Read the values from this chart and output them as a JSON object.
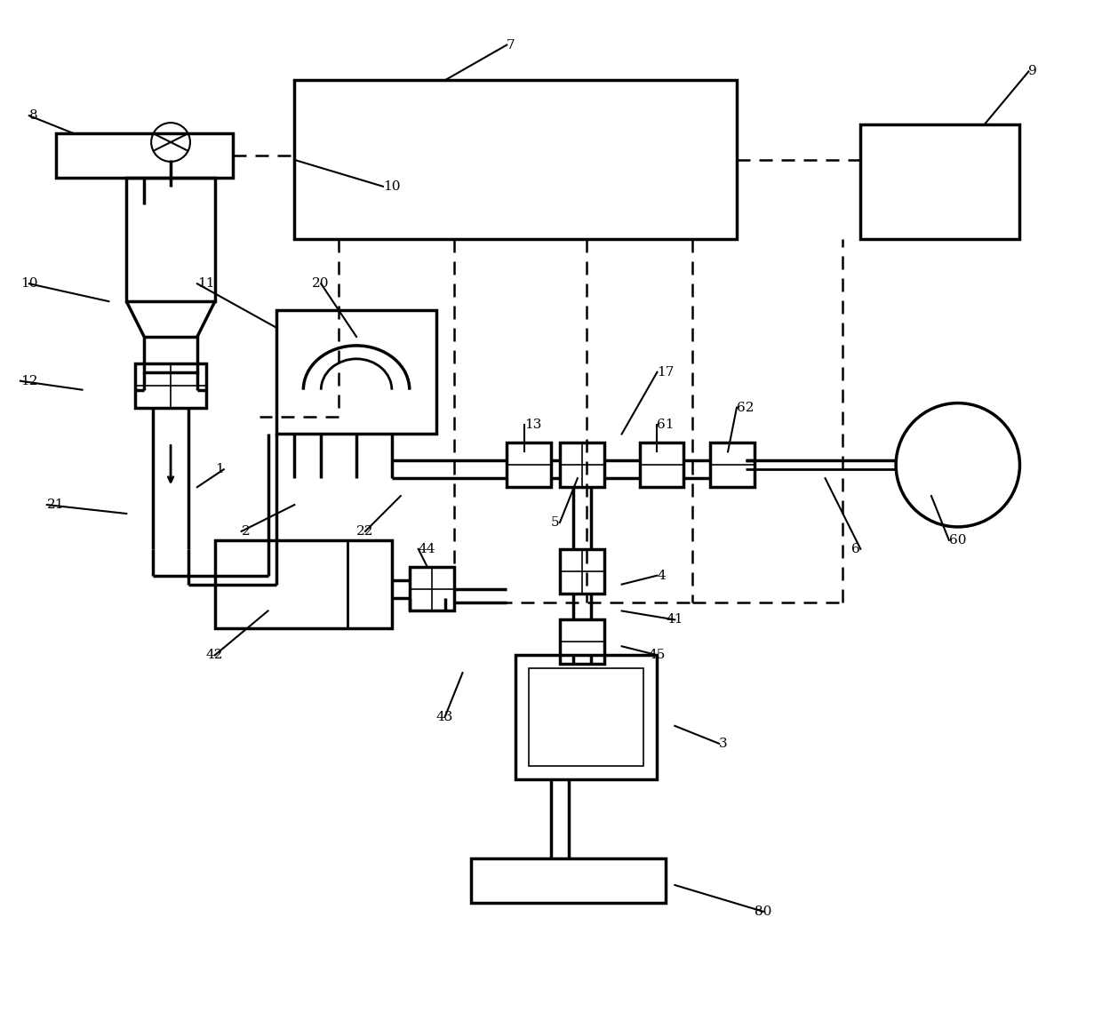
{
  "bg_color": "#ffffff",
  "line_color": "#000000",
  "lw_thick": 2.5,
  "lw_med": 2.0,
  "lw_thin": 1.5,
  "lw_dash": 1.8,
  "fig_w": 12.4,
  "fig_h": 11.58,
  "xlim": [
    0,
    124
  ],
  "ylim": [
    0,
    115.8
  ],
  "labels": [
    [
      "7",
      57,
      111,
      11
    ],
    [
      "8",
      3,
      103,
      11
    ],
    [
      "9",
      116,
      108,
      11
    ],
    [
      "10",
      2,
      84,
      11
    ],
    [
      "11",
      22,
      84,
      11
    ],
    [
      "12",
      2,
      73,
      11
    ],
    [
      "1",
      24,
      63,
      11
    ],
    [
      "2",
      27,
      56,
      11
    ],
    [
      "20",
      35,
      84,
      11
    ],
    [
      "21",
      5,
      59,
      11
    ],
    [
      "22",
      40,
      56,
      11
    ],
    [
      "13",
      59,
      68,
      11
    ],
    [
      "17",
      74,
      74,
      11
    ],
    [
      "5",
      62,
      57,
      11
    ],
    [
      "61",
      74,
      68,
      11
    ],
    [
      "62",
      83,
      70,
      11
    ],
    [
      "60",
      107,
      55,
      11
    ],
    [
      "6",
      96,
      54,
      11
    ],
    [
      "4",
      74,
      51,
      11
    ],
    [
      "41",
      75,
      46,
      11
    ],
    [
      "45",
      73,
      42,
      11
    ],
    [
      "3",
      81,
      32,
      11
    ],
    [
      "80",
      85,
      13,
      11
    ],
    [
      "42",
      23,
      42,
      11
    ],
    [
      "44",
      47,
      54,
      11
    ],
    [
      "43",
      49,
      35,
      11
    ],
    [
      "10",
      43,
      95,
      11
    ]
  ]
}
